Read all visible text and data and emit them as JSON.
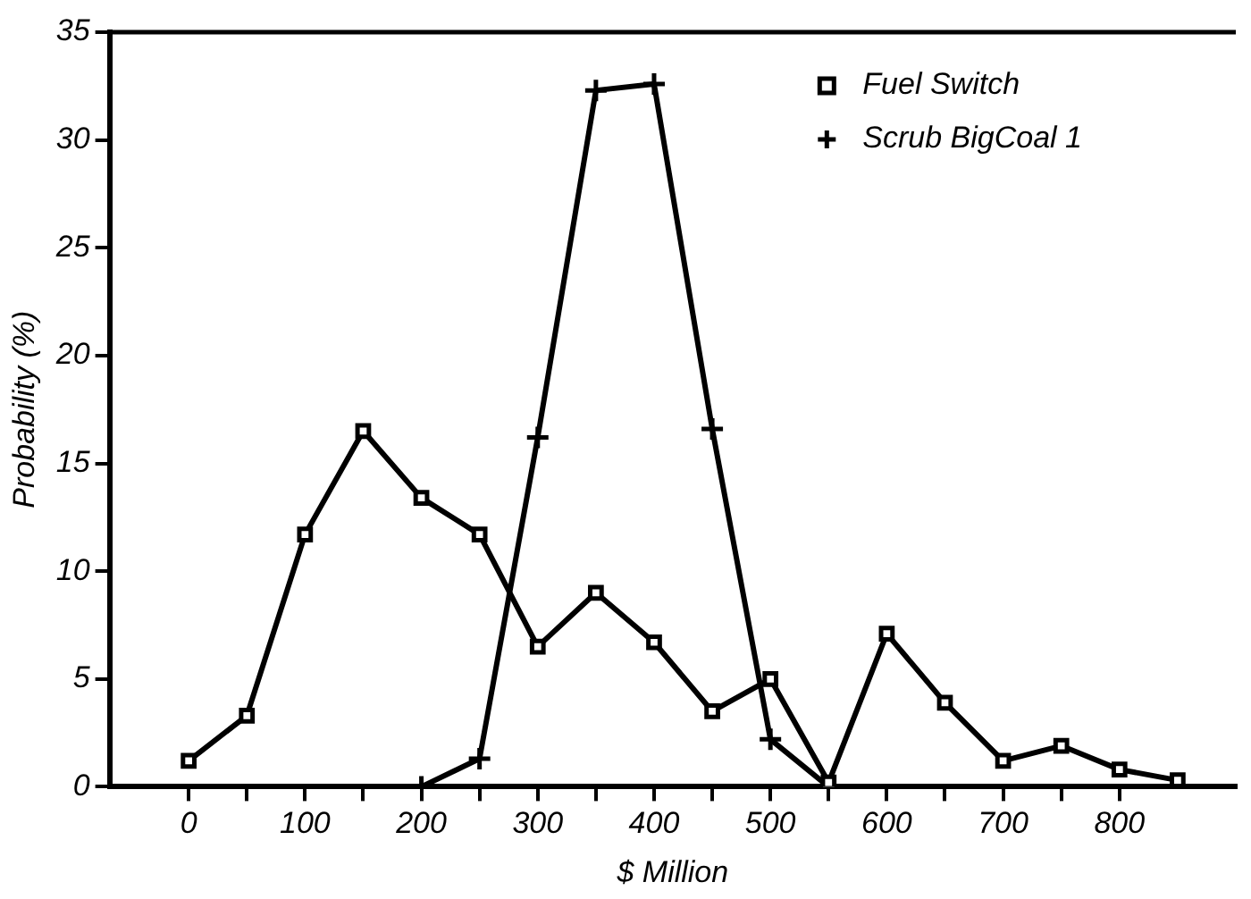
{
  "chart_data": {
    "type": "line",
    "xlabel": "$ Million",
    "ylabel": "Probability (%)",
    "xlim": [
      -68,
      900
    ],
    "xticks": [
      0,
      {
        "value": 50,
        "label": null
      },
      100,
      {
        "value": 150,
        "label": null
      },
      200,
      {
        "value": 250,
        "label": null
      },
      300,
      {
        "value": 350,
        "label": null
      },
      400,
      {
        "value": 450,
        "label": null
      },
      500,
      {
        "value": 550,
        "label": null
      },
      600,
      {
        "value": 650,
        "label": null
      },
      700,
      {
        "value": 750,
        "label": null
      },
      800
    ],
    "ylim": [
      0,
      35
    ],
    "yticks": [
      0,
      5,
      10,
      15,
      20,
      25,
      30,
      35
    ],
    "grid": false,
    "legend": "top right",
    "line_style": "solid",
    "series": [
      {
        "name": "Fuel Switch",
        "color": "#000000",
        "marker": "square",
        "x": [
          0,
          50,
          100,
          150,
          200,
          250,
          300,
          350,
          400,
          450,
          500,
          550,
          600,
          650,
          700,
          750,
          800,
          850
        ],
        "values": [
          1.2,
          3.3,
          11.7,
          16.5,
          13.4,
          11.7,
          6.5,
          9,
          6.7,
          3.5,
          5,
          0.2,
          7.1,
          3.9,
          1.2,
          1.9,
          0.8,
          0.3
        ]
      },
      {
        "name": "Scrub BigCoal 1",
        "color": "#000000",
        "marker": "cross",
        "x": [
          200,
          250,
          300,
          350,
          400,
          450,
          500,
          550
        ],
        "values": [
          0,
          1.3,
          16.2,
          32.3,
          32.6,
          16.6,
          2.2,
          0
        ]
      }
    ]
  }
}
